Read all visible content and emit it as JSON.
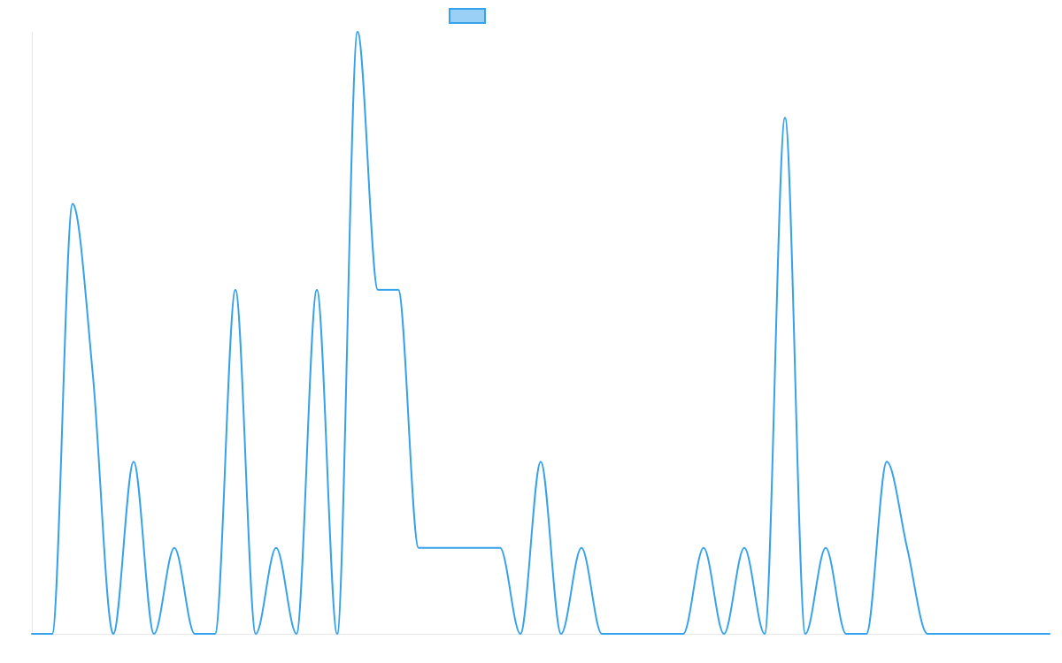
{
  "chart_data": {
    "type": "line",
    "title": "",
    "xlabel": "",
    "ylabel": "",
    "ylim": [
      0,
      7
    ],
    "legend": {
      "position": "top-center",
      "label": ""
    },
    "grid": false,
    "style": {
      "line_color": "#36a2eb",
      "fill_color": "#9ad0f5",
      "axis_color": "#e6e6e6"
    },
    "series": [
      {
        "values": [
          0,
          0,
          5,
          3,
          0,
          2,
          0,
          1,
          0,
          0,
          4,
          0,
          1,
          0,
          4,
          0,
          7,
          4,
          4,
          1,
          1,
          1,
          1,
          1,
          0,
          2,
          0,
          1,
          0,
          0,
          0,
          0,
          0,
          1,
          0,
          1,
          0,
          6,
          0,
          1,
          0,
          0,
          2,
          1,
          0,
          0,
          0,
          0,
          0,
          0,
          0
        ]
      }
    ]
  }
}
